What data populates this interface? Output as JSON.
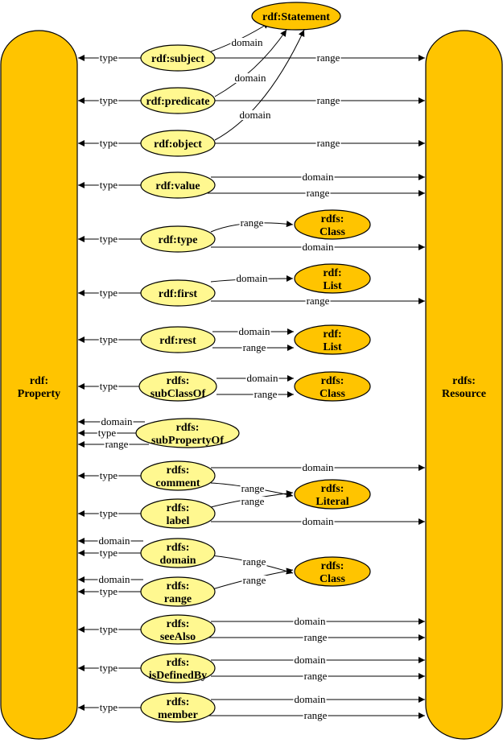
{
  "colors": {
    "big_node": "#ffc400",
    "property_node": "#fff890",
    "class_node": "#ffc400",
    "line": "#000000"
  },
  "big_nodes": {
    "property": {
      "lines": [
        "rdf:",
        "Property"
      ]
    },
    "resource": {
      "lines": [
        "rdfs:",
        "Resource"
      ]
    }
  },
  "class_nodes": [
    {
      "id": "statement",
      "lines": [
        "rdf:Statement"
      ]
    },
    {
      "id": "class1",
      "lines": [
        "rdfs:",
        "Class"
      ]
    },
    {
      "id": "list1",
      "lines": [
        "rdf:",
        "List"
      ]
    },
    {
      "id": "list2",
      "lines": [
        "rdf:",
        "List"
      ]
    },
    {
      "id": "class2",
      "lines": [
        "rdfs:",
        "Class"
      ]
    },
    {
      "id": "literal",
      "lines": [
        "rdfs:",
        "Literal"
      ]
    },
    {
      "id": "class3",
      "lines": [
        "rdfs:",
        "Class"
      ]
    }
  ],
  "property_nodes": [
    {
      "id": "subject",
      "lines": [
        "rdf:subject"
      ]
    },
    {
      "id": "predicate",
      "lines": [
        "rdf:predicate"
      ]
    },
    {
      "id": "object",
      "lines": [
        "rdf:object"
      ]
    },
    {
      "id": "value",
      "lines": [
        "rdf:value"
      ]
    },
    {
      "id": "type",
      "lines": [
        "rdf:type"
      ]
    },
    {
      "id": "first",
      "lines": [
        "rdf:first"
      ]
    },
    {
      "id": "rest",
      "lines": [
        "rdf:rest"
      ]
    },
    {
      "id": "subClassOf",
      "lines": [
        "rdfs:",
        "subClassOf"
      ]
    },
    {
      "id": "subPropertyOf",
      "lines": [
        "rdfs:",
        "subPropertyOf"
      ]
    },
    {
      "id": "comment",
      "lines": [
        "rdfs:",
        "comment"
      ]
    },
    {
      "id": "label",
      "lines": [
        "rdfs:",
        "label"
      ]
    },
    {
      "id": "domain",
      "lines": [
        "rdfs:",
        "domain"
      ]
    },
    {
      "id": "range",
      "lines": [
        "rdfs:",
        "range"
      ]
    },
    {
      "id": "seeAlso",
      "lines": [
        "rdfs:",
        "seeAlso"
      ]
    },
    {
      "id": "isDefinedBy",
      "lines": [
        "rdfs:",
        "isDefinedBy"
      ]
    },
    {
      "id": "member",
      "lines": [
        "rdfs:",
        "member"
      ]
    }
  ],
  "edges": [
    {
      "id": "subject-type",
      "label": "type"
    },
    {
      "id": "subject-domain",
      "label": "domain"
    },
    {
      "id": "subject-range",
      "label": "range"
    },
    {
      "id": "predicate-type",
      "label": "type"
    },
    {
      "id": "predicate-domain",
      "label": "domain"
    },
    {
      "id": "predicate-range",
      "label": "range"
    },
    {
      "id": "object-type",
      "label": "type"
    },
    {
      "id": "object-domain",
      "label": "domain"
    },
    {
      "id": "object-range",
      "label": "range"
    },
    {
      "id": "value-type",
      "label": "type"
    },
    {
      "id": "value-domain",
      "label": "domain"
    },
    {
      "id": "value-range",
      "label": "range"
    },
    {
      "id": "type-type",
      "label": "type"
    },
    {
      "id": "type-range",
      "label": "range"
    },
    {
      "id": "type-domain",
      "label": "domain"
    },
    {
      "id": "first-type",
      "label": "type"
    },
    {
      "id": "first-domain",
      "label": "domain"
    },
    {
      "id": "first-range",
      "label": "range"
    },
    {
      "id": "rest-type",
      "label": "type"
    },
    {
      "id": "rest-domain",
      "label": "domain"
    },
    {
      "id": "rest-range",
      "label": "range"
    },
    {
      "id": "subClassOf-type",
      "label": "type"
    },
    {
      "id": "subClassOf-domain",
      "label": "domain"
    },
    {
      "id": "subClassOf-range",
      "label": "range"
    },
    {
      "id": "subPropertyOf-domain",
      "label": "domain"
    },
    {
      "id": "subPropertyOf-type",
      "label": "type"
    },
    {
      "id": "subPropertyOf-range",
      "label": "range"
    },
    {
      "id": "comment-type",
      "label": "type"
    },
    {
      "id": "comment-domain",
      "label": "domain"
    },
    {
      "id": "comment-range",
      "label": "range"
    },
    {
      "id": "label-type",
      "label": "type"
    },
    {
      "id": "label-range",
      "label": "range"
    },
    {
      "id": "label-domain",
      "label": "domain"
    },
    {
      "id": "domain-domain",
      "label": "domain"
    },
    {
      "id": "domain-type",
      "label": "type"
    },
    {
      "id": "domain-range",
      "label": "range"
    },
    {
      "id": "range-domain",
      "label": "domain"
    },
    {
      "id": "range-type",
      "label": "type"
    },
    {
      "id": "range-range",
      "label": "range"
    },
    {
      "id": "seeAlso-type",
      "label": "type"
    },
    {
      "id": "seeAlso-domain",
      "label": "domain"
    },
    {
      "id": "seeAlso-range",
      "label": "range"
    },
    {
      "id": "isDefinedBy-type",
      "label": "type"
    },
    {
      "id": "isDefinedBy-domain",
      "label": "domain"
    },
    {
      "id": "isDefinedBy-range",
      "label": "range"
    },
    {
      "id": "member-type",
      "label": "type"
    },
    {
      "id": "member-domain",
      "label": "domain"
    },
    {
      "id": "member-range",
      "label": "range"
    }
  ]
}
